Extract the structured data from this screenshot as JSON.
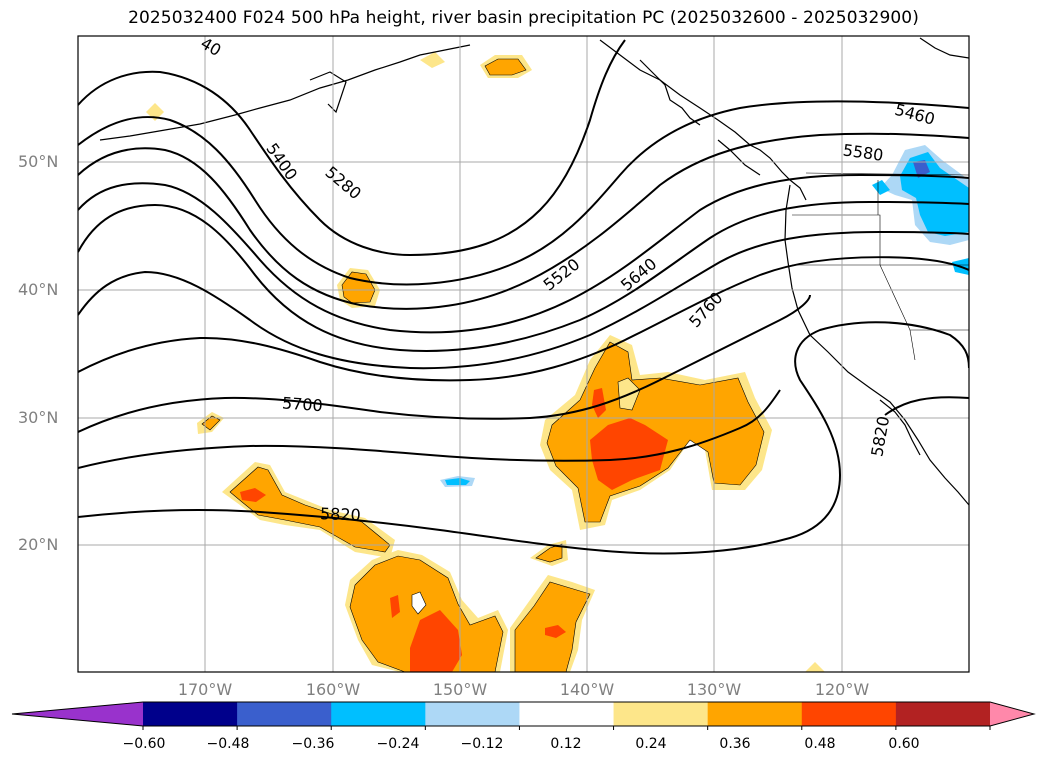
{
  "title": "2025032400 F024 500 hPa height, river basin precipitation PC (2025032600 - 2025032900)",
  "lat_labels": [
    "50°N",
    "40°N",
    "30°N",
    "20°N"
  ],
  "lon_labels": [
    "170°W",
    "160°W",
    "150°W",
    "140°W",
    "130°W",
    "120°W"
  ],
  "contour_labels": [
    "5460",
    "5580",
    "5400",
    "5280",
    "5520",
    "5640",
    "5760",
    "5700",
    "5820",
    "5820",
    "40"
  ],
  "colorbar": {
    "tick_labels": [
      "−0.60",
      "−0.48",
      "−0.36",
      "−0.24",
      "−0.12",
      "0.12",
      "0.24",
      "0.36",
      "0.48",
      "0.60"
    ],
    "colors": [
      "#9932cc",
      "#00008b",
      "#3a5fcd",
      "#00bfff",
      "#add8f6",
      "#ffffff",
      "#fde68a",
      "#ffa500",
      "#ff4500",
      "#b22222",
      "#ff88aa"
    ]
  }
}
